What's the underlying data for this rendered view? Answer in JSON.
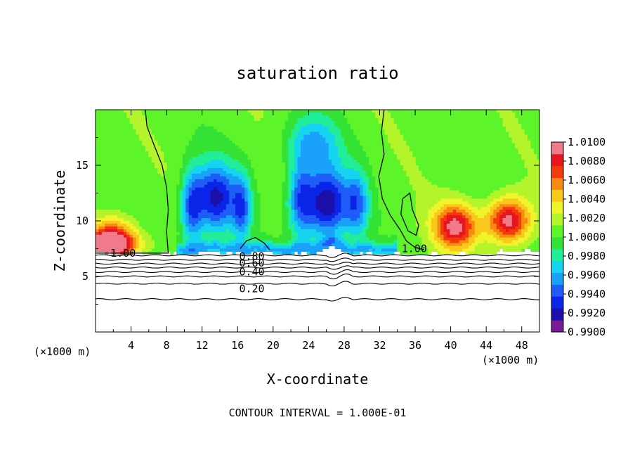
{
  "chart_data": {
    "type": "heatmap",
    "title": "saturation ratio",
    "xlabel": "X-coordinate",
    "ylabel": "Z-coordinate",
    "x_unit_left": "(×1000 m)",
    "x_unit_right": "(×1000 m)",
    "xlim": [
      0,
      50
    ],
    "ylim": [
      0,
      20
    ],
    "x_ticks": [
      4,
      8,
      12,
      16,
      20,
      24,
      28,
      32,
      36,
      40,
      44,
      48
    ],
    "y_ticks": [
      5,
      10,
      15
    ],
    "footer": "CONTOUR INTERVAL = 1.000E-01",
    "colorbar": {
      "min": 0.99,
      "max": 1.01,
      "tick_labels": [
        "1.0100",
        "1.0080",
        "1.0060",
        "1.0040",
        "1.0020",
        "1.0000",
        "0.9980",
        "0.9960",
        "0.9940",
        "0.9920",
        "0.9900"
      ],
      "colors": [
        "#7a1a98",
        "#1c0ea8",
        "#0b24e8",
        "#1f5cf8",
        "#1aa2fa",
        "#16d4f0",
        "#22ee9a",
        "#34e234",
        "#5ef42a",
        "#b4f42a",
        "#f0f42a",
        "#f8c81a",
        "#f88a12",
        "#f23a0c",
        "#e8141e",
        "#f07a8a"
      ]
    },
    "contour_labels": [
      {
        "text": "1.00",
        "x": 3.1,
        "y": 7.1
      },
      {
        "text": "1.00",
        "x": 35.9,
        "y": 7.5
      },
      {
        "text": "0.80",
        "x": 17.6,
        "y": 6.8
      },
      {
        "text": "0.60",
        "x": 17.6,
        "y": 6.2
      },
      {
        "text": "0.40",
        "x": 17.6,
        "y": 5.4
      },
      {
        "text": "0.20",
        "x": 17.6,
        "y": 3.9
      }
    ],
    "surface_levels": [
      {
        "level": 0.8,
        "z": 6.9
      },
      {
        "level": 0.7,
        "z": 6.5
      },
      {
        "level": 0.6,
        "z": 6.15
      },
      {
        "level": 0.5,
        "z": 5.8
      },
      {
        "level": 0.4,
        "z": 5.4
      },
      {
        "level": 0.3,
        "z": 5.0
      },
      {
        "level": 0.2,
        "z": 4.35
      },
      {
        "level": 0.1,
        "z": 2.95
      }
    ],
    "field_features": [
      {
        "kind": "subsaturated",
        "x": 13.5,
        "z": 12.0,
        "amplitude": -0.0085
      },
      {
        "kind": "subsaturated",
        "x": 26.0,
        "z": 11.5,
        "amplitude": -0.0095
      },
      {
        "kind": "supersaturated",
        "x": 2.0,
        "z": 8.2,
        "amplitude": 0.008
      },
      {
        "kind": "supersaturated",
        "x": 40.5,
        "z": 9.5,
        "amplitude": 0.0085
      },
      {
        "kind": "supersaturated",
        "x": 46.5,
        "z": 10.0,
        "amplitude": 0.009
      }
    ]
  }
}
